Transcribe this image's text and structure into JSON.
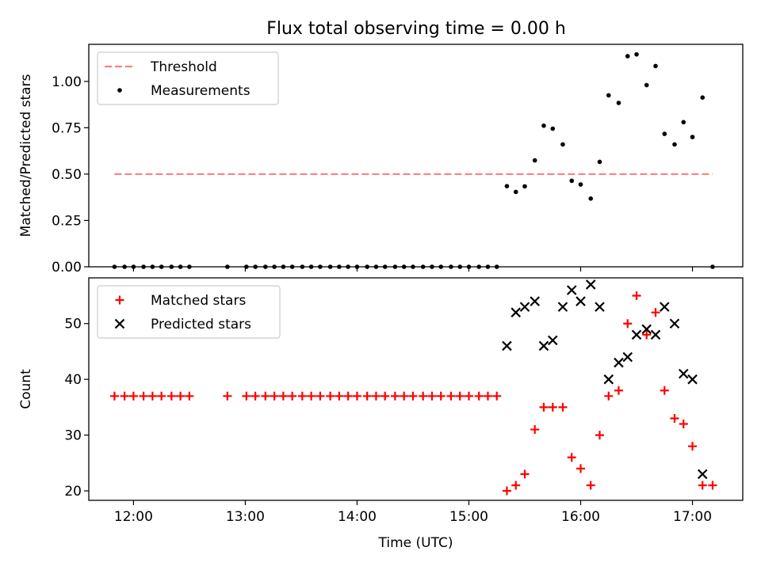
{
  "title": "Flux total observing time = 0.00 h",
  "chart_data": [
    {
      "type": "scatter",
      "panel": "top",
      "ylabel": "Matched/Predicted stars",
      "ylim": [
        0,
        1.2
      ],
      "xlim": [
        11.6,
        17.45
      ],
      "yticks": [
        0.0,
        0.25,
        0.5,
        0.75,
        1.0
      ],
      "ytick_labels": [
        "0.00",
        "0.25",
        "0.50",
        "0.75",
        "1.00"
      ],
      "legend": {
        "position": "top-left",
        "entries": [
          "Threshold",
          "Measurements"
        ]
      },
      "threshold": {
        "name": "Threshold",
        "y": 0.5,
        "x_range": [
          11.83,
          17.18
        ],
        "color": "#ff7f7f"
      },
      "series": [
        {
          "name": "Measurements",
          "marker": "dot",
          "color": "#000000",
          "x": [
            11.83,
            11.92,
            12.0,
            12.09,
            12.17,
            12.25,
            12.34,
            12.42,
            12.5,
            12.84,
            13.01,
            13.09,
            13.18,
            13.26,
            13.34,
            13.42,
            13.51,
            13.59,
            13.67,
            13.76,
            13.84,
            13.92,
            14.0,
            14.09,
            14.17,
            14.25,
            14.34,
            14.42,
            14.5,
            14.59,
            14.67,
            14.75,
            14.84,
            14.92,
            15.0,
            15.09,
            15.17,
            15.25,
            15.34,
            15.42,
            15.5,
            15.59,
            15.67,
            15.75,
            15.84,
            15.92,
            16.0,
            16.09,
            16.17,
            16.25,
            16.34,
            16.42,
            16.5,
            16.59,
            16.67,
            16.75,
            16.84,
            16.92,
            17.0,
            17.09,
            17.18
          ],
          "y": [
            0,
            0,
            0,
            0,
            0,
            0,
            0,
            0,
            0,
            0,
            0,
            0,
            0,
            0,
            0,
            0,
            0,
            0,
            0,
            0,
            0,
            0,
            0,
            0,
            0,
            0,
            0,
            0,
            0,
            0,
            0,
            0,
            0,
            0,
            0,
            0,
            0,
            0,
            0.435,
            0.404,
            0.434,
            0.574,
            0.761,
            0.745,
            0.66,
            0.464,
            0.444,
            0.368,
            0.566,
            0.925,
            0.884,
            1.136,
            1.146,
            0.98,
            1.083,
            0.717,
            0.66,
            0.78,
            0.7,
            0.913,
            0
          ]
        }
      ]
    },
    {
      "type": "scatter",
      "panel": "bottom",
      "xlabel": "Time (UTC)",
      "ylabel": "Count",
      "ylim": [
        18.3,
        58.2
      ],
      "xlim": [
        11.6,
        17.45
      ],
      "yticks": [
        20,
        30,
        40,
        50
      ],
      "ytick_labels": [
        "20",
        "30",
        "40",
        "50"
      ],
      "xticks": [
        12,
        13,
        14,
        15,
        16,
        17
      ],
      "xtick_labels": [
        "12:00",
        "13:00",
        "14:00",
        "15:00",
        "16:00",
        "17:00"
      ],
      "legend": {
        "position": "top-left",
        "entries": [
          "Matched stars",
          "Predicted stars"
        ]
      },
      "series": [
        {
          "name": "Matched stars",
          "marker": "plus",
          "color": "#ff0000",
          "x": [
            11.83,
            11.92,
            12.0,
            12.09,
            12.17,
            12.25,
            12.34,
            12.42,
            12.5,
            12.84,
            13.01,
            13.09,
            13.18,
            13.26,
            13.34,
            13.42,
            13.51,
            13.59,
            13.67,
            13.76,
            13.84,
            13.92,
            14.0,
            14.09,
            14.17,
            14.25,
            14.34,
            14.42,
            14.5,
            14.59,
            14.67,
            14.75,
            14.84,
            14.92,
            15.0,
            15.09,
            15.17,
            15.25,
            15.34,
            15.42,
            15.5,
            15.59,
            15.67,
            15.75,
            15.84,
            15.92,
            16.0,
            16.09,
            16.17,
            16.25,
            16.34,
            16.42,
            16.5,
            16.59,
            16.67,
            16.75,
            16.84,
            16.92,
            17.0,
            17.09,
            17.18
          ],
          "y": [
            37,
            37,
            37,
            37,
            37,
            37,
            37,
            37,
            37,
            37,
            37,
            37,
            37,
            37,
            37,
            37,
            37,
            37,
            37,
            37,
            37,
            37,
            37,
            37,
            37,
            37,
            37,
            37,
            37,
            37,
            37,
            37,
            37,
            37,
            37,
            37,
            37,
            37,
            20,
            21,
            23,
            31,
            35,
            35,
            35,
            26,
            24,
            21,
            30,
            37,
            38,
            50,
            55,
            48,
            52,
            38,
            33,
            32,
            28,
            21,
            21
          ]
        },
        {
          "name": "Predicted stars",
          "marker": "x",
          "color": "#000000",
          "x": [
            15.34,
            15.42,
            15.5,
            15.59,
            15.67,
            15.75,
            15.84,
            15.92,
            16.0,
            16.09,
            16.17,
            16.25,
            16.34,
            16.42,
            16.5,
            16.59,
            16.67,
            16.75,
            16.84,
            16.92,
            17.0,
            17.09
          ],
          "y": [
            46,
            52,
            53,
            54,
            46,
            47,
            53,
            56,
            54,
            57,
            53,
            40,
            43,
            44,
            48,
            49,
            48,
            53,
            50,
            41,
            40,
            23
          ]
        }
      ]
    }
  ]
}
